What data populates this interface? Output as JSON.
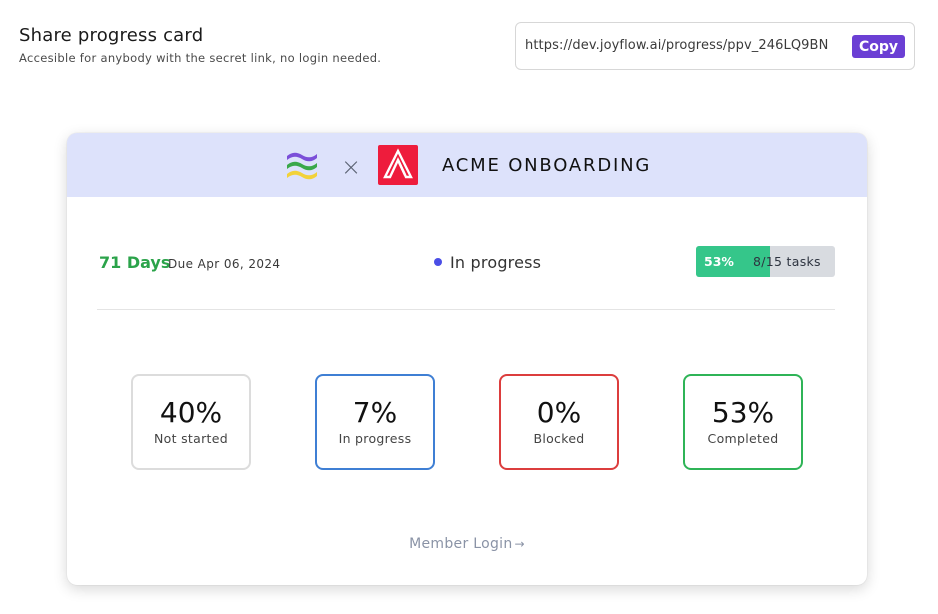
{
  "header": {
    "title": "Share progress card",
    "subtitle": "Accesible for anybody with the secret link, no login needed."
  },
  "share_link": {
    "url": "https://dev.joyflow.ai/progress/ppv_246LQ9BN",
    "copy_label": "Copy",
    "copy_color": "#6b3fd4"
  },
  "card": {
    "header_bg": "#dde2fb",
    "separator": "×",
    "project_name": "ACME ONBOARDING",
    "days_label": "71 Days",
    "due_label": "Due Apr 06, 2024",
    "status": {
      "label": "In progress",
      "dot_color": "#4a4ee6"
    },
    "progress": {
      "percent_label": "53%",
      "tasks_label": "8/15 tasks",
      "fraction": 0.53,
      "fill_color": "#35c68a"
    },
    "stats": [
      {
        "value": "40%",
        "label": "Not started",
        "border_color": "#dcdcdc"
      },
      {
        "value": "7%",
        "label": "In progress",
        "border_color": "#3f7fd4"
      },
      {
        "value": "0%",
        "label": "Blocked",
        "border_color": "#dc3d3d"
      },
      {
        "value": "53%",
        "label": "Completed",
        "border_color": "#2fb457"
      }
    ],
    "member_login": "Member Login",
    "member_login_arrow": "→"
  }
}
